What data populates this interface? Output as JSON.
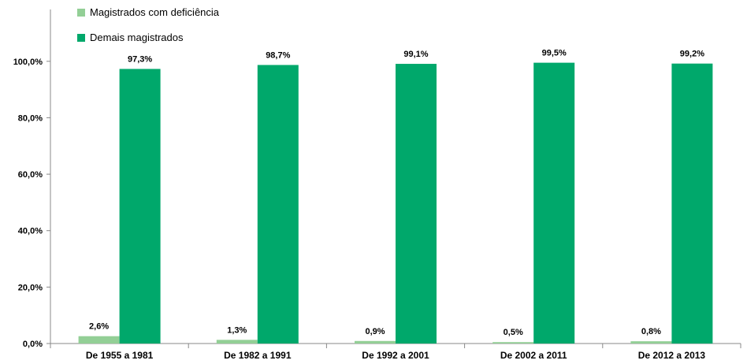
{
  "chart_data": {
    "type": "bar",
    "categories": [
      "De 1955 a 1981",
      "De 1982 a 1991",
      "De 1992 a 2001",
      "De 2002 a 2011",
      "De 2012 a 2013"
    ],
    "series": [
      {
        "name": "Magistrados com deficiência",
        "color": "#93cf96",
        "values": [
          2.6,
          1.3,
          0.9,
          0.5,
          0.8
        ],
        "labels": [
          "2,6%",
          "1,3%",
          "0,9%",
          "0,5%",
          "0,8%"
        ]
      },
      {
        "name": "Demais magistrados",
        "color": "#00a86b",
        "values": [
          97.3,
          98.7,
          99.1,
          99.5,
          99.2
        ],
        "labels": [
          "97,3%",
          "98,7%",
          "99,1%",
          "99,5%",
          "99,2%"
        ]
      }
    ],
    "yticks": [
      0,
      20,
      40,
      60,
      80,
      100
    ],
    "ytick_labels": [
      "0,0%",
      "20,0%",
      "40,0%",
      "60,0%",
      "80,0%",
      "100,0%"
    ],
    "ylim": [
      0,
      110
    ],
    "grid": false,
    "legend_position": "top-left"
  }
}
